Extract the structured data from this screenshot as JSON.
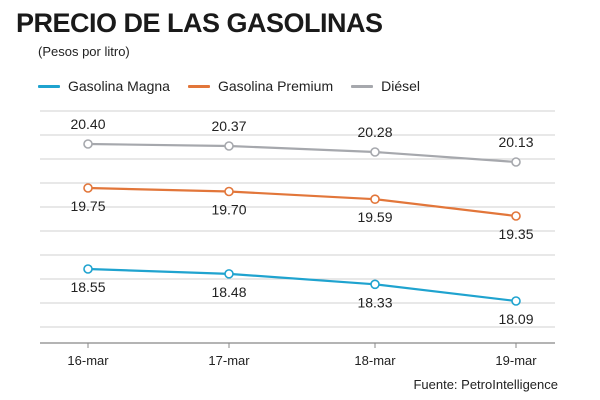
{
  "title": "PRECIO DE LAS GASOLINAS",
  "subtitle": "(Pesos por litro)",
  "source": "Fuente: PetroIntelligence",
  "colors": {
    "magna": "#1fa3cf",
    "premium": "#e2763a",
    "diesel": "#a6a8ad",
    "grid": "#d2d2d2",
    "axis": "#888888"
  },
  "chart_data": {
    "type": "line",
    "title": "PRECIO DE LAS GASOLINAS",
    "subtitle": "(Pesos por litro)",
    "xlabel": "",
    "ylabel": "",
    "categories": [
      "16-mar",
      "17-mar",
      "18-mar",
      "19-mar"
    ],
    "series": [
      {
        "name": "Gasolina Magna",
        "color": "#1fa3cf",
        "values": [
          18.55,
          18.48,
          18.33,
          18.09
        ],
        "labels": [
          "18.55",
          "18.48",
          "18.33",
          "18.09"
        ],
        "label_position": "below"
      },
      {
        "name": "Gasolina Premium",
        "color": "#e2763a",
        "values": [
          19.75,
          19.7,
          19.59,
          19.35
        ],
        "labels": [
          "19.75",
          "19.70",
          "19.59",
          "19.35"
        ],
        "label_position": "below"
      },
      {
        "name": "Diésel",
        "color": "#a6a8ad",
        "values": [
          20.4,
          20.37,
          20.28,
          20.13
        ],
        "labels": [
          "20.40",
          "20.37",
          "20.28",
          "20.13"
        ],
        "label_position": "above"
      }
    ],
    "grid": true,
    "legend_position": "top-left"
  }
}
